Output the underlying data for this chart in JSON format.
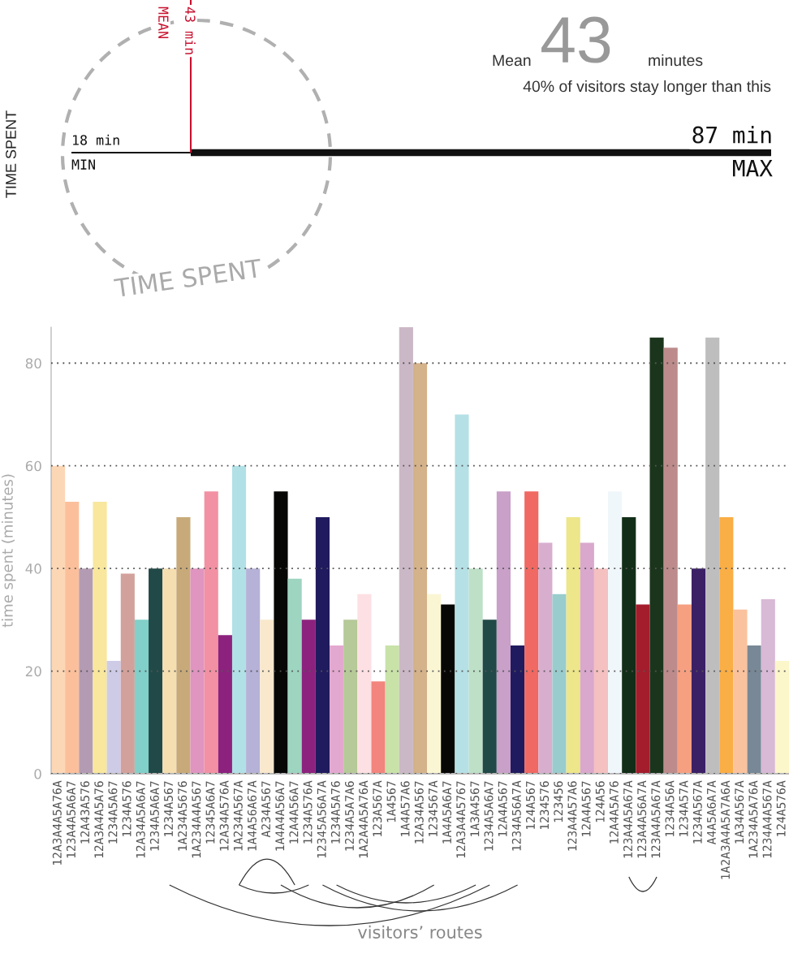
{
  "chart_data": [
    {
      "type": "other",
      "title": "TIME SPENT",
      "annotations": [
        "18 min",
        "MIN",
        "43 min",
        "MEAN",
        "87 min",
        "MAX",
        "TIME SPENT",
        "Mean",
        "43",
        "minutes",
        "40% of visitors stay longer than this"
      ]
    },
    {
      "type": "bar",
      "xlabel": "visitors’ routes",
      "ylabel": "time spent (minutes)",
      "categories": [
        "12A3A4A5A76A",
        "123A4A5A6A7",
        "12A43A576",
        "12A3A4A5A76",
        "1234A5A67",
        "1234A576",
        "12A34A5A6A7",
        "1234A5A6A7",
        "1234A567",
        "1A234A5676",
        "1A234A4A567",
        "12345A6A7",
        "12A34A576A",
        "1A234A567A",
        "1A4A56A67A",
        "A234A567",
        "1A4A4A56A7",
        "12A4A56A7",
        "1234A576A",
        "12345A56A7A",
        "1234A5A76",
        "1234A5A7A6",
        "1A2A4A5A76A",
        "123A567A",
        "1A4567",
        "1A4A57A6",
        "12A34A567",
        "1234567A",
        "1A4A5A6A7",
        "12A3A4A5767",
        "1A3A4567",
        "1234A5A6A7",
        "12A4A567",
        "1234A56A7A",
        "124A567",
        "1234576",
        "123456",
        "123A4A57A6",
        "12A4A567",
        "124A56",
        "12A4A5A76",
        "123A4A5A67A",
        "123A4A56A7A",
        "123A4A5A67A",
        "1234A56A",
        "1234A57A",
        "1234A567A",
        "A4A5A6A7A",
        "1A2A3A4A5A7A6A",
        "1A34A567A",
        "1A234A5A76A",
        "1234A4A567A",
        "124A576A"
      ],
      "values": [
        60,
        53,
        40,
        53,
        22,
        39,
        30,
        40,
        40,
        50,
        40,
        55,
        27,
        60,
        40,
        30,
        55,
        38,
        30,
        50,
        25,
        30,
        35,
        18,
        25,
        87,
        80,
        35,
        33,
        70,
        40,
        30,
        55,
        25,
        55,
        45,
        35,
        50,
        45,
        40,
        55,
        50,
        33,
        85,
        83,
        33,
        40,
        85,
        50,
        32,
        25,
        34,
        22
      ],
      "colors": [
        "#fcd7b6",
        "#fbc09b",
        "#b39bb4",
        "#f8e79c",
        "#cecbe7",
        "#d3a19b",
        "#81d0c9",
        "#214947",
        "#f5deb0",
        "#c8aa7a",
        "#df95c0",
        "#f291a3",
        "#8c227e",
        "#b1e1e6",
        "#b5b1d7",
        "#f9e8cc",
        "#070806",
        "#9dd5c0",
        "#8c227e",
        "#201b5e",
        "#e3a8cf",
        "#b6c998",
        "#fde0e3",
        "#f2857d",
        "#c8e2a8",
        "#cbb8c6",
        "#d4b28a",
        "#faf6d4",
        "#070806",
        "#b5e0e6",
        "#bde0c7",
        "#214947",
        "#c8a0c8",
        "#201b5e",
        "#f06962",
        "#d8aecf",
        "#99cccd",
        "#ede68a",
        "#d9a8cc",
        "#f5c0c0",
        "#f0f7fb",
        "#122e18",
        "#a41d2c",
        "#1b351c",
        "#bd8b8b",
        "#f6a081",
        "#3b2066",
        "#bebebe",
        "#faae46",
        "#fbc29e",
        "#788896",
        "#d8b9d6",
        "#fcf6cb"
      ],
      "ylim": [
        0,
        87
      ],
      "yticks": [
        0,
        20,
        40,
        60,
        80
      ],
      "grid": "y"
    }
  ]
}
